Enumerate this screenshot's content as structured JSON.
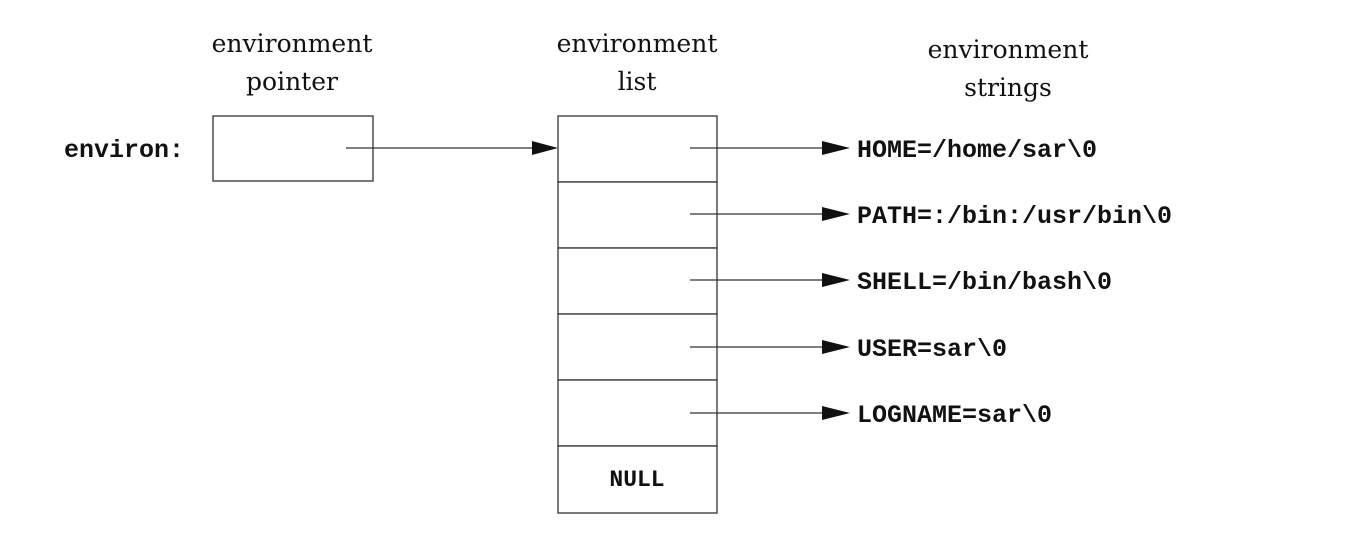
{
  "captions": {
    "pointer": [
      "environment",
      "pointer"
    ],
    "list": [
      "environment",
      "list"
    ],
    "strings": [
      "environment",
      "strings"
    ]
  },
  "pointer_label": "environ:",
  "list_terminator": "NULL",
  "strings": [
    "HOME=/home/sar\\0",
    "PATH=:/bin:/usr/bin\\0",
    "SHELL=/bin/bash\\0",
    "USER=sar\\0",
    "LOGNAME=sar\\0"
  ]
}
